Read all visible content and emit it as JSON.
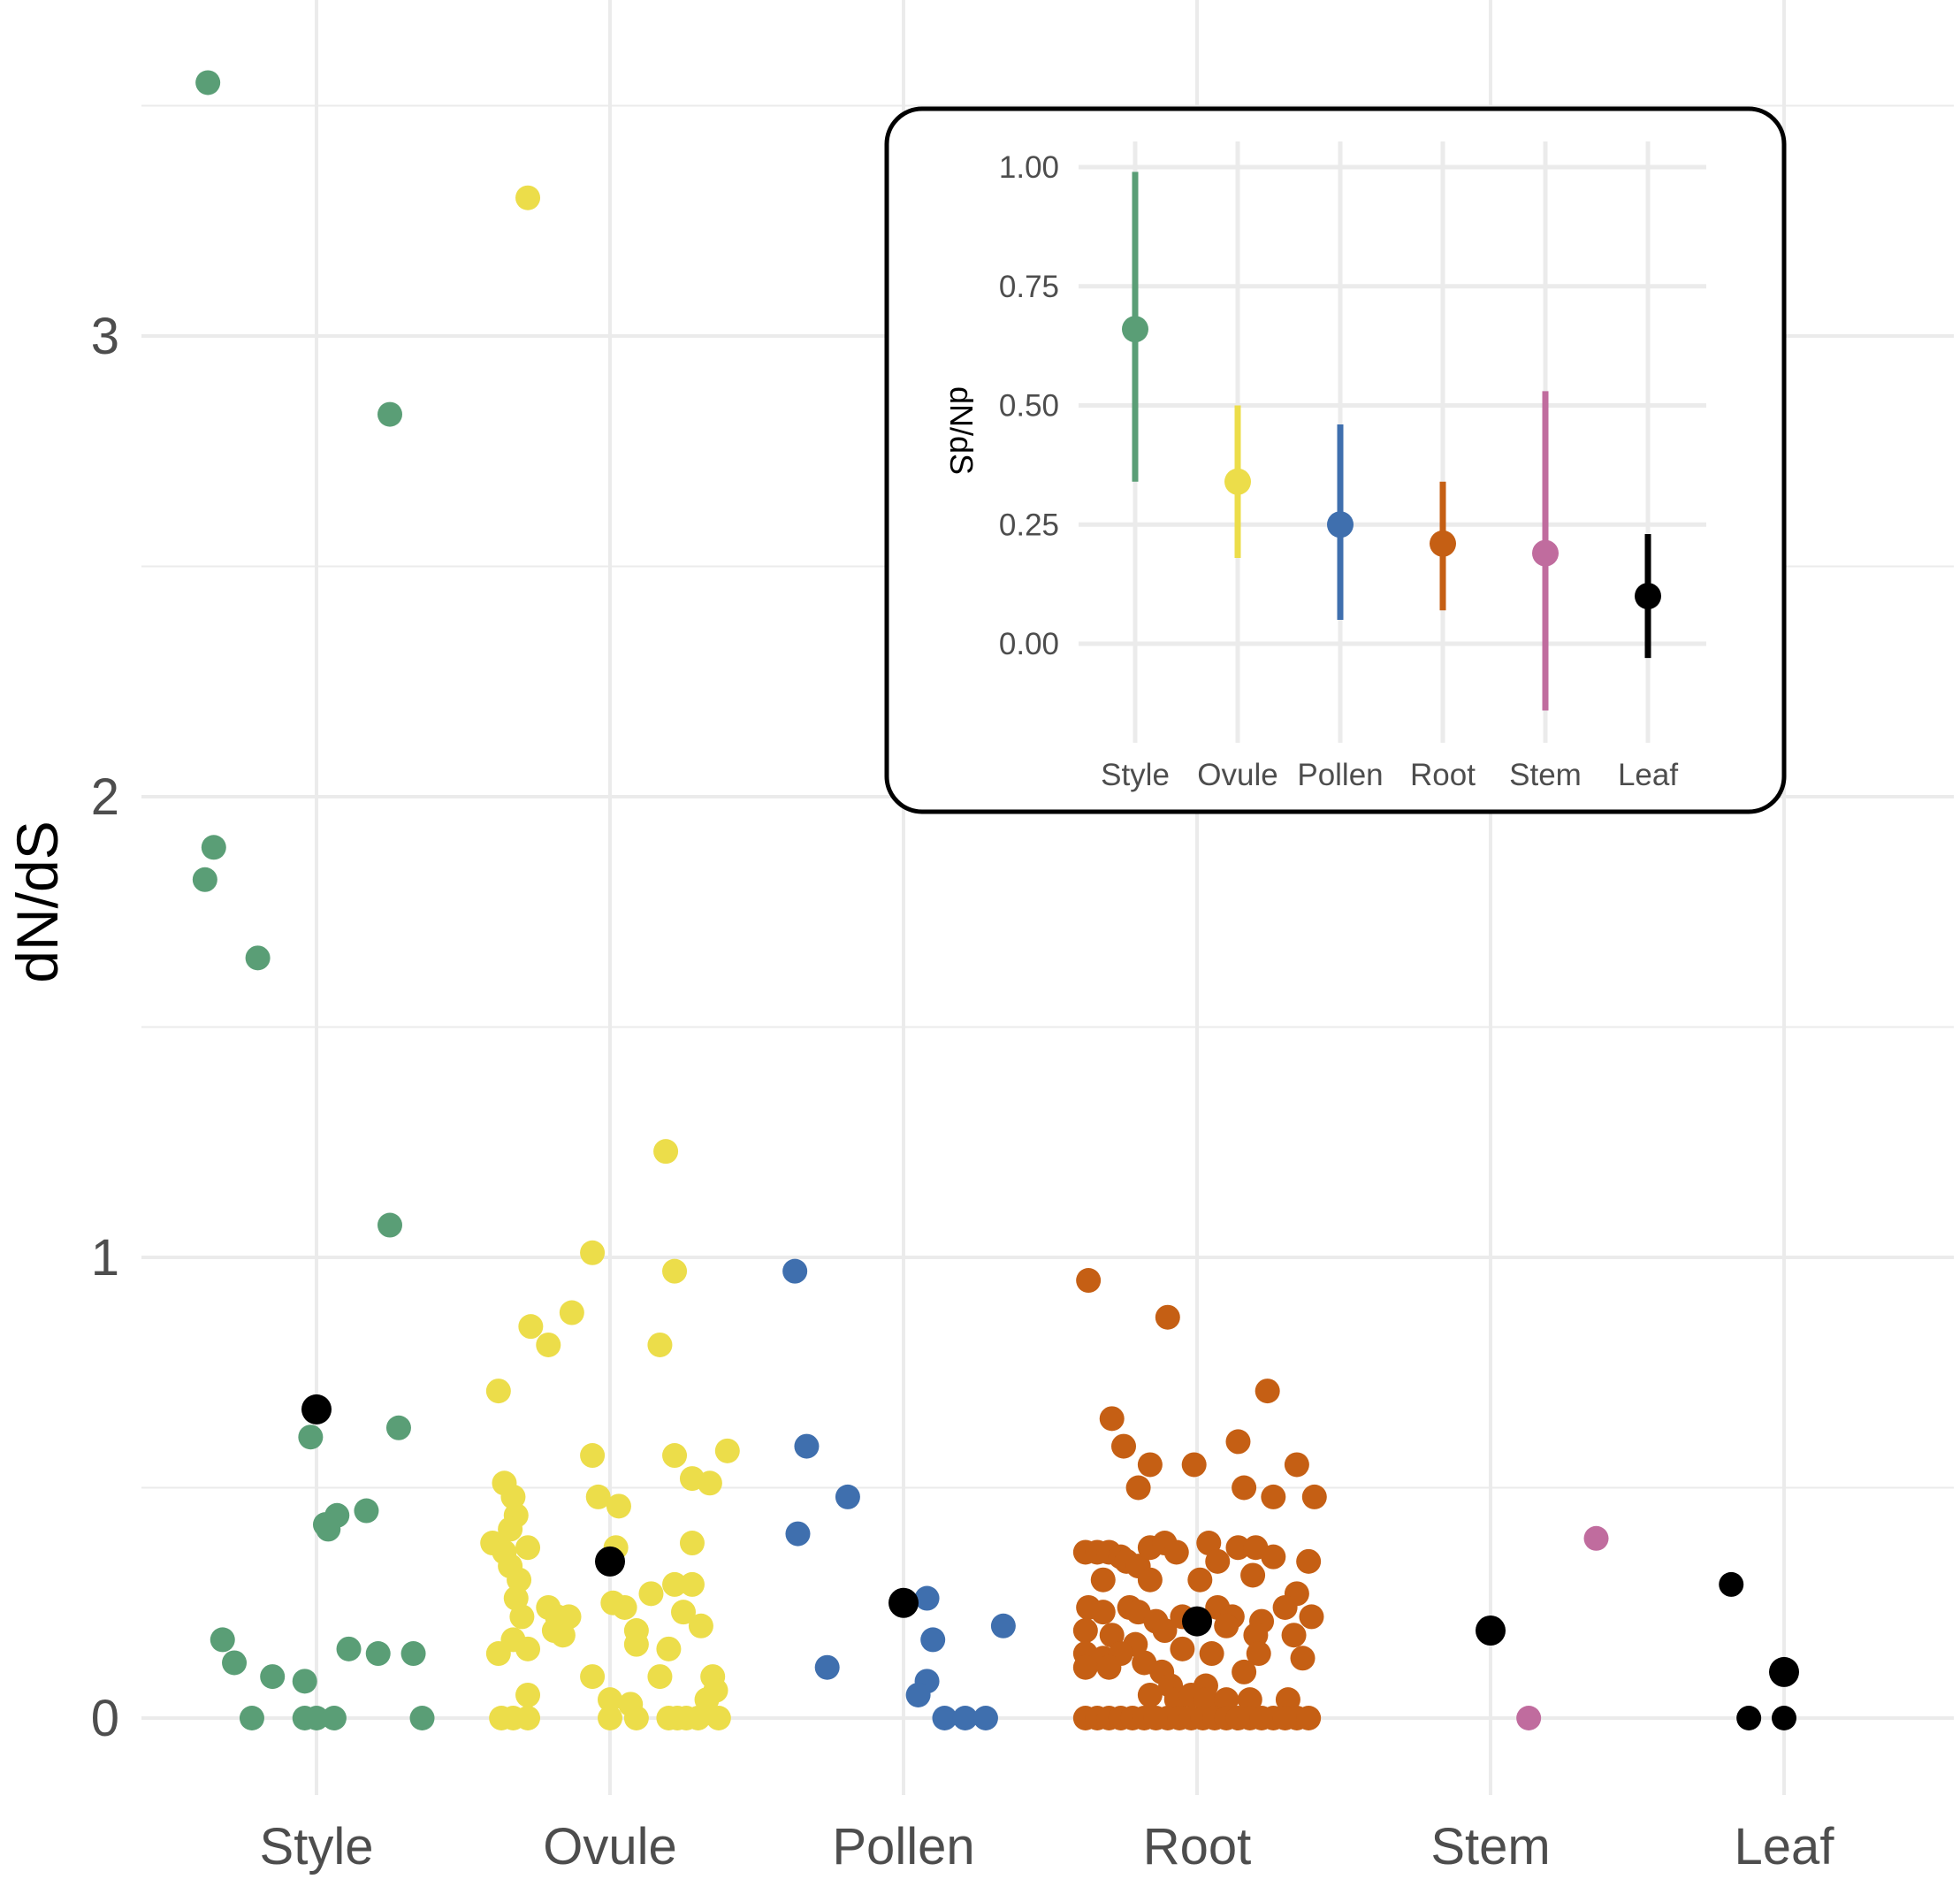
{
  "chart_data": [
    {
      "type": "scatter",
      "subtype": "jitter-strip",
      "ylabel": "dN/dS",
      "xlabel": "",
      "ylim": [
        -0.2,
        3.7
      ],
      "yticks": [
        0,
        1,
        2,
        3
      ],
      "categories": [
        "Style",
        "Ovule",
        "Pollen",
        "Root",
        "Stem",
        "Leaf"
      ],
      "grid": true,
      "series": [
        {
          "name": "Style",
          "color": "#5a9e76",
          "mean": 0.67,
          "points": [
            [
              -0.37,
              3.55
            ],
            [
              -0.35,
              1.89
            ],
            [
              -0.38,
              1.82
            ],
            [
              -0.2,
              1.65
            ],
            [
              0.25,
              2.83
            ],
            [
              0.25,
              1.07
            ],
            [
              0.28,
              0.63
            ],
            [
              -0.02,
              0.61
            ],
            [
              0.17,
              0.45
            ],
            [
              0.07,
              0.44
            ],
            [
              0.03,
              0.42
            ],
            [
              0.04,
              0.41
            ],
            [
              -0.32,
              0.17
            ],
            [
              -0.28,
              0.12
            ],
            [
              -0.15,
              0.09
            ],
            [
              -0.04,
              0.08
            ],
            [
              0.11,
              0.15
            ],
            [
              0.21,
              0.14
            ],
            [
              0.33,
              0.14
            ],
            [
              -0.22,
              0.0
            ],
            [
              -0.04,
              0.0
            ],
            [
              0.0,
              0.0
            ],
            [
              0.06,
              0.0
            ],
            [
              0.36,
              0.0
            ]
          ]
        },
        {
          "name": "Ovule",
          "color": "#ecdd4a",
          "mean": 0.34,
          "points": [
            [
              -0.28,
              3.3
            ],
            [
              0.19,
              1.23
            ],
            [
              -0.06,
              1.01
            ],
            [
              0.22,
              0.97
            ],
            [
              -0.13,
              0.88
            ],
            [
              -0.27,
              0.85
            ],
            [
              -0.21,
              0.81
            ],
            [
              0.17,
              0.81
            ],
            [
              -0.38,
              0.71
            ],
            [
              -0.06,
              0.57
            ],
            [
              0.22,
              0.57
            ],
            [
              0.4,
              0.58
            ],
            [
              -0.36,
              0.51
            ],
            [
              -0.33,
              0.48
            ],
            [
              -0.32,
              0.44
            ],
            [
              -0.34,
              0.41
            ],
            [
              -0.04,
              0.48
            ],
            [
              0.03,
              0.46
            ],
            [
              0.28,
              0.52
            ],
            [
              0.34,
              0.51
            ],
            [
              -0.4,
              0.38
            ],
            [
              -0.36,
              0.36
            ],
            [
              -0.28,
              0.37
            ],
            [
              0.02,
              0.37
            ],
            [
              0.28,
              0.38
            ],
            [
              -0.34,
              0.33
            ],
            [
              -0.31,
              0.3
            ],
            [
              -0.32,
              0.26
            ],
            [
              -0.3,
              0.22
            ],
            [
              -0.21,
              0.24
            ],
            [
              -0.18,
              0.22
            ],
            [
              -0.14,
              0.22
            ],
            [
              -0.19,
              0.19
            ],
            [
              -0.16,
              0.18
            ],
            [
              0.01,
              0.25
            ],
            [
              0.05,
              0.24
            ],
            [
              0.14,
              0.27
            ],
            [
              0.22,
              0.29
            ],
            [
              0.28,
              0.29
            ],
            [
              0.25,
              0.23
            ],
            [
              -0.33,
              0.17
            ],
            [
              -0.38,
              0.14
            ],
            [
              -0.28,
              0.15
            ],
            [
              0.09,
              0.16
            ],
            [
              0.2,
              0.15
            ],
            [
              0.31,
              0.2
            ],
            [
              0.09,
              0.19
            ],
            [
              -0.28,
              0.05
            ],
            [
              -0.06,
              0.09
            ],
            [
              0.17,
              0.09
            ],
            [
              0.35,
              0.09
            ],
            [
              0.36,
              0.06
            ],
            [
              0.33,
              0.04
            ],
            [
              0.07,
              0.03
            ],
            [
              0.0,
              0.04
            ],
            [
              -0.37,
              0.0
            ],
            [
              -0.33,
              0.0
            ],
            [
              -0.28,
              0.0
            ],
            [
              0.0,
              0.0
            ],
            [
              0.09,
              0.0
            ],
            [
              0.2,
              0.0
            ],
            [
              0.23,
              0.0
            ],
            [
              0.26,
              0.0
            ],
            [
              0.3,
              0.0
            ],
            [
              0.37,
              0.0
            ]
          ]
        },
        {
          "name": "Pollen",
          "color": "#3f6fae",
          "mean": 0.25,
          "points": [
            [
              -0.37,
              0.97
            ],
            [
              -0.33,
              0.59
            ],
            [
              -0.19,
              0.48
            ],
            [
              -0.36,
              0.4
            ],
            [
              0.08,
              0.26
            ],
            [
              0.34,
              0.2
            ],
            [
              0.1,
              0.17
            ],
            [
              -0.26,
              0.11
            ],
            [
              0.08,
              0.08
            ],
            [
              0.05,
              0.05
            ],
            [
              0.14,
              0.0
            ],
            [
              0.21,
              0.0
            ],
            [
              0.28,
              0.0
            ]
          ]
        },
        {
          "name": "Root",
          "color": "#c55f14",
          "mean": 0.21,
          "points": [
            [
              -0.37,
              0.95
            ],
            [
              -0.1,
              0.87
            ],
            [
              0.24,
              0.71
            ],
            [
              -0.29,
              0.65
            ],
            [
              0.14,
              0.6
            ],
            [
              -0.25,
              0.59
            ],
            [
              -0.16,
              0.55
            ],
            [
              -0.01,
              0.55
            ],
            [
              0.34,
              0.55
            ],
            [
              -0.2,
              0.5
            ],
            [
              0.16,
              0.5
            ],
            [
              0.26,
              0.48
            ],
            [
              0.4,
              0.48
            ],
            [
              -0.38,
              0.36
            ],
            [
              -0.34,
              0.36
            ],
            [
              -0.3,
              0.36
            ],
            [
              -0.26,
              0.35
            ],
            [
              -0.24,
              0.34
            ],
            [
              -0.2,
              0.33
            ],
            [
              -0.16,
              0.37
            ],
            [
              -0.11,
              0.38
            ],
            [
              -0.07,
              0.36
            ],
            [
              0.04,
              0.38
            ],
            [
              0.07,
              0.34
            ],
            [
              0.14,
              0.37
            ],
            [
              0.2,
              0.37
            ],
            [
              0.26,
              0.35
            ],
            [
              0.38,
              0.34
            ],
            [
              -0.32,
              0.3
            ],
            [
              -0.16,
              0.3
            ],
            [
              0.01,
              0.3
            ],
            [
              0.19,
              0.31
            ],
            [
              0.34,
              0.27
            ],
            [
              -0.37,
              0.24
            ],
            [
              -0.32,
              0.23
            ],
            [
              -0.23,
              0.24
            ],
            [
              -0.2,
              0.23
            ],
            [
              -0.14,
              0.21
            ],
            [
              -0.05,
              0.22
            ],
            [
              0.07,
              0.24
            ],
            [
              0.12,
              0.22
            ],
            [
              0.22,
              0.21
            ],
            [
              0.3,
              0.24
            ],
            [
              0.39,
              0.22
            ],
            [
              -0.38,
              0.19
            ],
            [
              -0.29,
              0.18
            ],
            [
              -0.21,
              0.16
            ],
            [
              -0.11,
              0.19
            ],
            [
              0.1,
              0.2
            ],
            [
              0.2,
              0.18
            ],
            [
              0.33,
              0.18
            ],
            [
              -0.38,
              0.14
            ],
            [
              -0.32,
              0.13
            ],
            [
              -0.26,
              0.14
            ],
            [
              -0.18,
              0.12
            ],
            [
              -0.05,
              0.15
            ],
            [
              0.05,
              0.14
            ],
            [
              0.21,
              0.14
            ],
            [
              0.36,
              0.13
            ],
            [
              -0.38,
              0.11
            ],
            [
              -0.3,
              0.11
            ],
            [
              -0.12,
              0.1
            ],
            [
              0.16,
              0.1
            ],
            [
              -0.09,
              0.07
            ],
            [
              0.03,
              0.07
            ],
            [
              -0.16,
              0.05
            ],
            [
              -0.07,
              0.04
            ],
            [
              -0.02,
              0.05
            ],
            [
              0.03,
              0.04
            ],
            [
              0.1,
              0.04
            ],
            [
              0.18,
              0.04
            ],
            [
              0.31,
              0.04
            ],
            [
              -0.38,
              0.0
            ],
            [
              -0.34,
              0.0
            ],
            [
              -0.3,
              0.0
            ],
            [
              -0.26,
              0.0
            ],
            [
              -0.22,
              0.0
            ],
            [
              -0.18,
              0.0
            ],
            [
              -0.14,
              0.0
            ],
            [
              -0.1,
              0.0
            ],
            [
              -0.06,
              0.0
            ],
            [
              -0.02,
              0.0
            ],
            [
              0.02,
              0.0
            ],
            [
              0.06,
              0.0
            ],
            [
              0.1,
              0.0
            ],
            [
              0.14,
              0.0
            ],
            [
              0.18,
              0.0
            ],
            [
              0.22,
              0.0
            ],
            [
              0.26,
              0.0
            ],
            [
              0.3,
              0.0
            ],
            [
              0.34,
              0.0
            ],
            [
              0.38,
              0.0
            ]
          ]
        },
        {
          "name": "Stem",
          "color": "#c06c9e",
          "mean": 0.19,
          "points": [
            [
              0.36,
              0.39
            ],
            [
              0.13,
              0.0
            ]
          ]
        },
        {
          "name": "Leaf",
          "color": "#000000",
          "mean": 0.1,
          "points": [
            [
              -0.18,
              0.29
            ],
            [
              -0.12,
              0.0
            ],
            [
              0.0,
              0.0
            ]
          ]
        }
      ]
    },
    {
      "type": "errorbar",
      "subtype": "point-range-inset",
      "ylabel": "dN/dS",
      "xlabel": "",
      "ylim": [
        -0.2,
        1.05
      ],
      "yticks": [
        "0.00",
        "0.25",
        "0.50",
        "0.75",
        "1.00"
      ],
      "categories": [
        "Style",
        "Ovule",
        "Pollen",
        "Root",
        "Stem",
        "Leaf"
      ],
      "series": [
        {
          "name": "Style",
          "color": "#5a9e76",
          "mean": 0.66,
          "low": 0.34,
          "high": 0.99
        },
        {
          "name": "Ovule",
          "color": "#ecdd4a",
          "mean": 0.34,
          "low": 0.18,
          "high": 0.5
        },
        {
          "name": "Pollen",
          "color": "#3f6fae",
          "mean": 0.25,
          "low": 0.05,
          "high": 0.46
        },
        {
          "name": "Root",
          "color": "#c55f14",
          "mean": 0.21,
          "low": 0.07,
          "high": 0.34
        },
        {
          "name": "Stem",
          "color": "#c06c9e",
          "mean": 0.19,
          "low": -0.14,
          "high": 0.53
        },
        {
          "name": "Leaf",
          "color": "#000000",
          "mean": 0.1,
          "low": -0.03,
          "high": 0.23
        }
      ]
    }
  ],
  "colors": {
    "grid": "#ebebeb",
    "mean_marker": "#000000",
    "inset_border": "#000000"
  }
}
